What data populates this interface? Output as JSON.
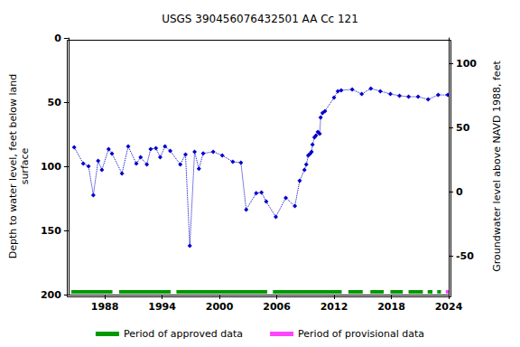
{
  "chart_data": {
    "type": "line",
    "title": "USGS 390456076432501 AA Cc 121",
    "y_label": "Depth to water level, feet below land\nsurface",
    "y2_label": "Groundwater level above NAVD 1988, feet",
    "x": [
      1984.8,
      1985.75,
      1986.3,
      1986.8,
      1987.3,
      1987.7,
      1988.4,
      1988.75,
      1989.8,
      1990.45,
      1991.3,
      1991.75,
      1992.4,
      1992.8,
      1993.35,
      1993.8,
      1994.3,
      1994.85,
      1995.9,
      1996.45,
      1996.9,
      1997.4,
      1997.85,
      1998.3,
      1999.35,
      2000.3,
      2001.4,
      2002.25,
      2002.8,
      2003.85,
      2004.4,
      2004.9,
      2005.9,
      2006.95,
      2007.9,
      2008.4,
      2008.9,
      2009.1,
      2009.3,
      2009.5,
      2009.65,
      2009.75,
      2009.95,
      2010.1,
      2010.3,
      2010.5,
      2010.6,
      2010.8,
      2011.05,
      2012.0,
      2012.4,
      2012.75,
      2013.9,
      2014.9,
      2015.85,
      2016.85,
      2017.9,
      2018.85,
      2019.8,
      2020.8,
      2021.85,
      2022.9,
      2023.9
    ],
    "values": [
      85.2,
      97.9,
      100,
      122.5,
      95.8,
      102.8,
      86.6,
      90.1,
      105.6,
      84.5,
      97.9,
      93,
      98.6,
      86.6,
      85.9,
      93,
      84.5,
      88,
      98.6,
      90.8,
      162,
      88.7,
      102,
      90,
      88.7,
      91.5,
      96.5,
      97.2,
      133.8,
      121,
      120.4,
      127.5,
      139.4,
      124.6,
      131,
      111.3,
      102.8,
      98.6,
      91.5,
      90.1,
      88.7,
      83.1,
      77.5,
      76,
      73.2,
      74.6,
      62,
      58.5,
      57,
      46.5,
      41.5,
      40.8,
      40.1,
      43.7,
      39.4,
      41.5,
      43.7,
      45,
      45.8,
      45.8,
      47.9,
      44.4,
      44.4
    ],
    "color": "#0000cc",
    "marker": "diamond",
    "line_style": "dotted",
    "xlim": [
      1984.2,
      2024
    ],
    "xticks": [
      1988,
      1994,
      2000,
      2006,
      2012,
      2018,
      2024
    ],
    "ylim": [
      200,
      0
    ],
    "yticks": [
      0,
      50,
      100,
      150,
      200
    ],
    "y2lim": [
      -80,
      120
    ],
    "y2ticks": [
      -50,
      0,
      50,
      100
    ],
    "grid": false,
    "legend": "bottom",
    "periods": [
      {
        "name": "Period of approved data",
        "color": "#009900",
        "ranges": [
          [
            1984.5,
            1988.8
          ],
          [
            1989.5,
            1994.9
          ],
          [
            1995.5,
            2005.0
          ],
          [
            2005.6,
            2012.8
          ],
          [
            2013.5,
            2015.0
          ],
          [
            2015.8,
            2017.2
          ],
          [
            2017.9,
            2019.2
          ],
          [
            2019.8,
            2021.3
          ],
          [
            2021.8,
            2022.3
          ],
          [
            2022.8,
            2023.2
          ]
        ]
      },
      {
        "name": "Period of provisional data",
        "color": "#ff44ff",
        "ranges": [
          [
            2023.7,
            2024.0
          ]
        ]
      }
    ]
  }
}
